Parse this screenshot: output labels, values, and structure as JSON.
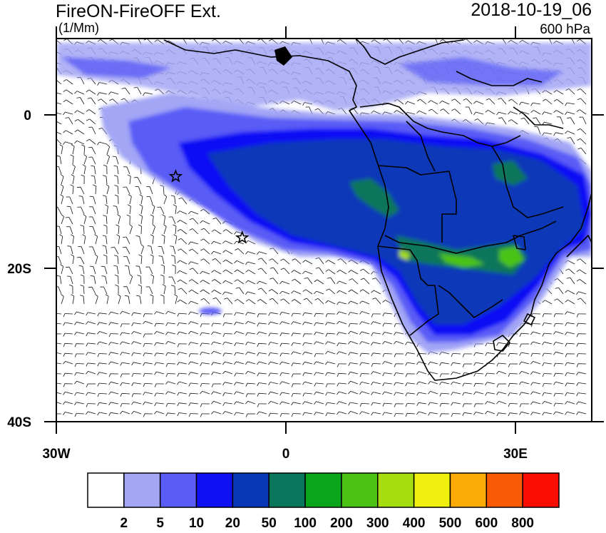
{
  "header": {
    "title": "FireON-FireOFF Ext.",
    "units": "(1/Mm)",
    "datetime": "2018-10-19_06",
    "level": "600 hPa"
  },
  "axes": {
    "y_labels": [
      "0",
      "20S",
      "40S"
    ],
    "x_labels": [
      "30W",
      "0",
      "30E"
    ],
    "lon_range": [
      -30,
      40
    ],
    "lat_range": [
      -40,
      10
    ]
  },
  "colorbar": {
    "colors": [
      "#ffffff",
      "#a3a6f5",
      "#5a5cf6",
      "#1010f5",
      "#0a37b8",
      "#08765a",
      "#0aa51a",
      "#4cc214",
      "#a6dd10",
      "#f0f00e",
      "#fbac07",
      "#fb5a05",
      "#fb0d04"
    ],
    "labels": [
      "2",
      "5",
      "10",
      "20",
      "50",
      "100",
      "200",
      "300",
      "400",
      "500",
      "600",
      "800"
    ]
  },
  "markers": {
    "stars": [
      {
        "lon": -14.4,
        "lat": -8.0
      },
      {
        "lon": -5.7,
        "lat": -16.0
      }
    ]
  }
}
